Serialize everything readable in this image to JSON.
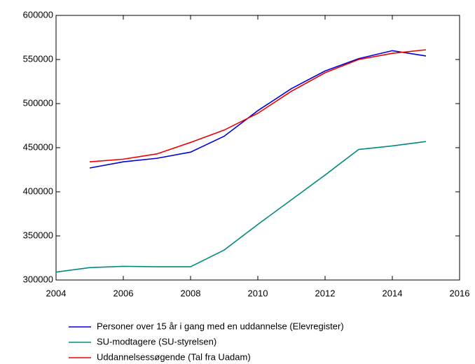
{
  "chart_data": {
    "type": "line",
    "x": [
      2004,
      2005,
      2006,
      2007,
      2008,
      2009,
      2010,
      2011,
      2012,
      2013,
      2014,
      2015
    ],
    "series": [
      {
        "name": "Personer over 15 år i gang med en uddannelse (Elevregister)",
        "color": "#0000dd",
        "values": [
          null,
          427000,
          434000,
          438000,
          445000,
          463000,
          492000,
          517000,
          537000,
          551000,
          560000,
          554000
        ]
      },
      {
        "name": "SU-modtagere (SU-styrelsen)",
        "color": "#008b80",
        "values": [
          309000,
          314000,
          315500,
          315000,
          315000,
          334000,
          363000,
          391000,
          419000,
          448000,
          452000,
          457000
        ]
      },
      {
        "name": "Uddannelsessøgende (Tal fra Uadam)",
        "color": "#ee0000",
        "values": [
          null,
          434000,
          437000,
          443000,
          456000,
          470000,
          489000,
          514000,
          535000,
          550000,
          557000,
          561000
        ]
      }
    ],
    "xlim": [
      2004,
      2016
    ],
    "xticks": [
      2004,
      2006,
      2008,
      2010,
      2012,
      2014,
      2016
    ],
    "ylim": [
      300000,
      600000
    ],
    "yticks": [
      300000,
      350000,
      400000,
      450000,
      500000,
      550000,
      600000
    ]
  }
}
